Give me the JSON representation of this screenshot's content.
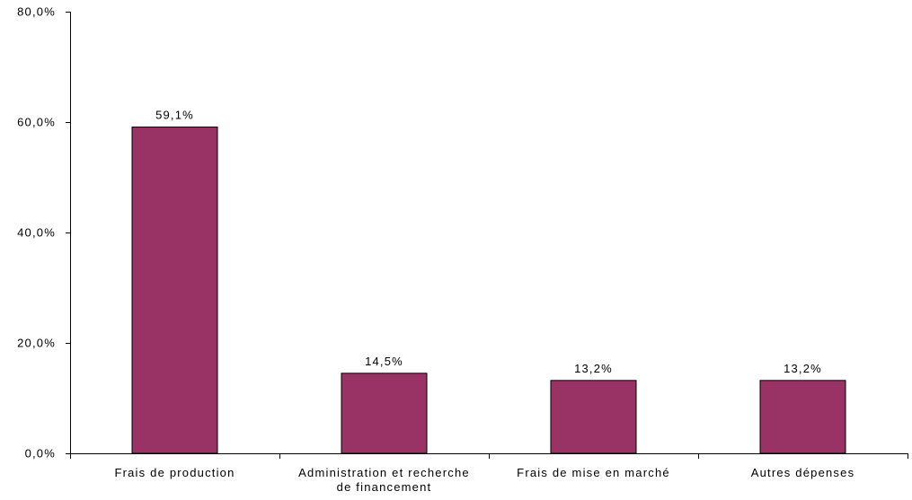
{
  "chart_data": {
    "type": "bar",
    "categories": [
      [
        "Frais de production"
      ],
      [
        "Administration et recherche",
        "de financement"
      ],
      [
        "Frais de mise en marché"
      ],
      [
        "Autres dépenses"
      ]
    ],
    "values": [
      59.1,
      14.5,
      13.2,
      13.2
    ],
    "data_labels": [
      "59,1%",
      "14,5%",
      "13,2%",
      "13,2%"
    ],
    "y_ticks": [
      0,
      20,
      40,
      60,
      80
    ],
    "y_tick_labels": [
      "0,0%",
      "20,0%",
      "40,0%",
      "60,0%",
      "80,0%"
    ],
    "ylim": [
      0,
      80
    ],
    "title": "",
    "xlabel": "",
    "ylabel": "",
    "grid": false,
    "legend": "none",
    "bar_color": "#993366"
  }
}
